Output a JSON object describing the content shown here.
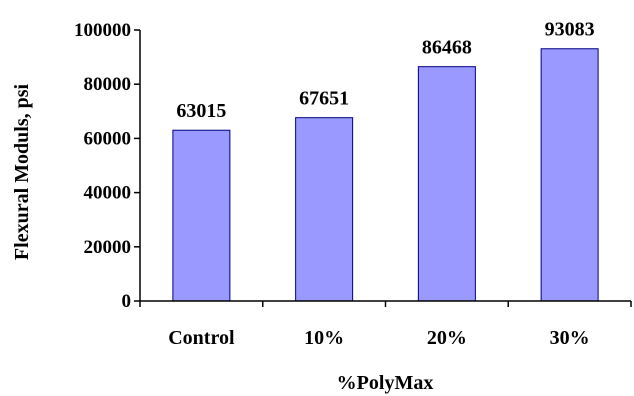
{
  "chart_data": {
    "type": "bar",
    "categories": [
      "Control",
      "10%",
      "20%",
      "30%"
    ],
    "values": [
      63015,
      67651,
      86468,
      93083
    ],
    "data_labels": [
      "63015",
      "67651",
      "86468",
      "93083"
    ],
    "xlabel": "%PolyMax",
    "ylabel": "Flexural Moduls, psi",
    "ylim": [
      0,
      100000
    ],
    "yticks": [
      0,
      20000,
      40000,
      60000,
      80000,
      100000
    ],
    "ytick_labels": [
      "0",
      "20000",
      "40000",
      "60000",
      "80000",
      "100000"
    ],
    "grid": false,
    "legend": "none",
    "bar_color": "#9999FF",
    "bar_edge_color": "#000080"
  }
}
